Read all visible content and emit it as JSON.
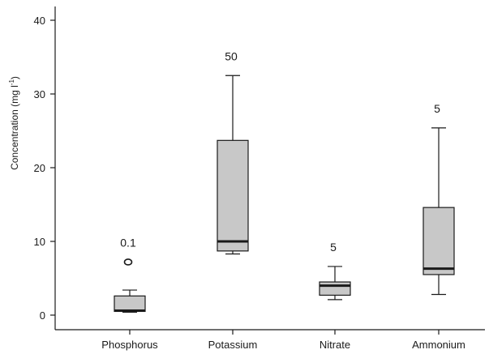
{
  "chart_data": {
    "type": "boxplot",
    "ylabel": "Concentration (mg l",
    "ylabel_sup": "-1",
    "ylabel_close": ")",
    "ylim": [
      -2,
      42
    ],
    "yticks": [
      0,
      10,
      20,
      30,
      40
    ],
    "grid": false,
    "colors": {
      "box_fill": "#c8c8c8",
      "stroke": "#1a1a1a"
    },
    "categories": [
      "Phosphorus",
      "Potassium",
      "Nitrate",
      "Ammonium"
    ],
    "boxes": [
      {
        "category": "Phosphorus",
        "annotation": "0.1",
        "whisker_low": 0.4,
        "q1": 0.5,
        "median": 0.6,
        "q3": 2.6,
        "whisker_high": 3.4,
        "outliers": [
          7.2
        ]
      },
      {
        "category": "Potassium",
        "annotation": "50",
        "whisker_low": 8.3,
        "q1": 8.7,
        "median": 10.0,
        "q3": 23.7,
        "whisker_high": 32.5,
        "outliers": []
      },
      {
        "category": "Nitrate",
        "annotation": "5",
        "whisker_low": 2.1,
        "q1": 2.7,
        "median": 4.0,
        "q3": 4.5,
        "whisker_high": 6.6,
        "outliers": []
      },
      {
        "category": "Ammonium",
        "annotation": "5",
        "whisker_low": 2.8,
        "q1": 5.5,
        "median": 6.3,
        "q3": 14.6,
        "whisker_high": 25.4,
        "outliers": []
      }
    ]
  }
}
